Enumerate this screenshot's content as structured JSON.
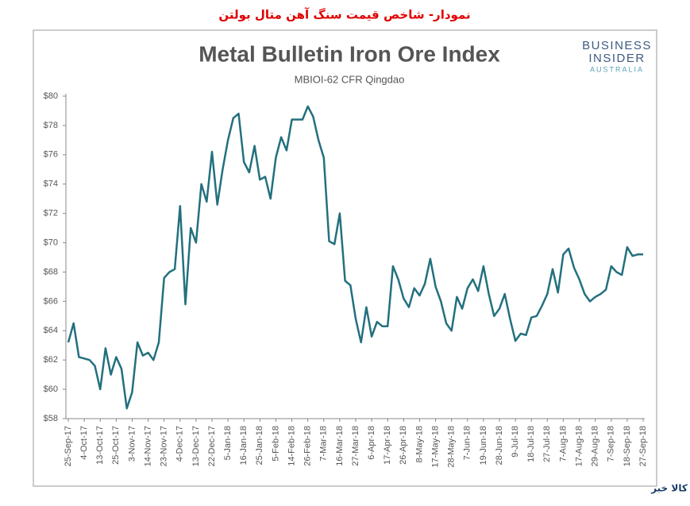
{
  "header": "نمودار- شاخص قیمت سنگ آهن متال بولتن",
  "chart_data": {
    "type": "line",
    "title": "Metal Bulletin Iron Ore Index",
    "subtitle": "MBIOI-62 CFR Qingdao",
    "categories": [
      "25-Sep-17",
      null,
      null,
      "4-Oct-17",
      null,
      null,
      "13-Oct-17",
      null,
      null,
      "25-Oct-17",
      null,
      null,
      "3-Nov-17",
      null,
      null,
      "14-Nov-17",
      null,
      null,
      "23-Nov-17",
      null,
      null,
      "4-Dec-17",
      null,
      null,
      "13-Dec-17",
      null,
      null,
      "22-Dec-17",
      null,
      null,
      "5-Jan-18",
      null,
      null,
      "16-Jan-18",
      null,
      null,
      "25-Jan-18",
      null,
      null,
      "5-Feb-18",
      null,
      null,
      "14-Feb-18",
      null,
      null,
      "26-Feb-18",
      null,
      null,
      "7-Mar-18",
      null,
      null,
      "16-Mar-18",
      null,
      null,
      "27-Mar-18",
      null,
      null,
      "6-Apr-18",
      null,
      null,
      "17-Apr-18",
      null,
      null,
      "26-Apr-18",
      null,
      null,
      "8-May-18",
      null,
      null,
      "17-May-18",
      null,
      null,
      "28-May-18",
      null,
      null,
      "7-Jun-18",
      null,
      null,
      "19-Jun-18",
      null,
      null,
      "28-Jun-18",
      null,
      null,
      "9-Jul-18",
      null,
      null,
      "18-Jul-18",
      null,
      null,
      "27-Jul-18",
      null,
      null,
      "7-Aug-18",
      null,
      null,
      "17-Aug-18",
      null,
      null,
      "29-Aug-18",
      null,
      null,
      "7-Sep-18",
      null,
      null,
      "18-Sep-18",
      null,
      null,
      "27-Sep-18"
    ],
    "series": [
      {
        "color": "#23707e",
        "values": [
          63.2,
          64.5,
          62.2,
          62.1,
          62.0,
          61.6,
          60.0,
          62.8,
          61.0,
          62.2,
          61.4,
          58.7,
          59.8,
          63.2,
          62.3,
          62.5,
          62.0,
          63.2,
          67.6,
          68.0,
          68.2,
          72.5,
          65.8,
          71.0,
          70.0,
          74.0,
          72.8,
          76.2,
          72.6,
          75.0,
          77.0,
          78.5,
          78.8,
          75.5,
          74.8,
          76.6,
          74.3,
          74.5,
          73.0,
          75.8,
          77.2,
          76.3,
          78.4,
          78.4,
          78.4,
          79.3,
          78.6,
          77.0,
          75.8,
          70.1,
          69.9,
          72.0,
          67.4,
          67.1,
          64.8,
          63.2,
          65.6,
          63.6,
          64.6,
          64.3,
          64.3,
          68.4,
          67.5,
          66.2,
          65.6,
          66.9,
          66.4,
          67.2,
          68.9,
          67.0,
          66.0,
          64.5,
          64.0,
          66.3,
          65.5,
          66.9,
          67.5,
          66.7,
          68.4,
          66.5,
          65.0,
          65.5,
          66.5,
          64.8,
          63.3,
          63.8,
          63.7,
          64.9,
          65.0,
          65.7,
          66.5,
          68.2,
          66.6,
          69.2,
          69.6,
          68.3,
          67.5,
          66.5,
          66.0,
          66.3,
          66.5,
          66.8,
          68.4,
          68.0,
          67.8,
          69.7,
          69.1,
          69.2,
          69.2
        ]
      }
    ],
    "ylim": [
      58,
      80
    ],
    "yticks": [
      {
        "value": 58,
        "label": "$58"
      },
      {
        "value": 60,
        "label": "$60"
      },
      {
        "value": 62,
        "label": "$62"
      },
      {
        "value": 64,
        "label": "$64"
      },
      {
        "value": 66,
        "label": "$66"
      },
      {
        "value": 68,
        "label": "$68"
      },
      {
        "value": 70,
        "label": "$70"
      },
      {
        "value": 72,
        "label": "$72"
      },
      {
        "value": 74,
        "label": "$74"
      },
      {
        "value": 76,
        "label": "$76"
      },
      {
        "value": 78,
        "label": "$78"
      },
      {
        "value": 80,
        "label": "$80"
      }
    ],
    "grid": false
  },
  "logo": [
    "BUSINESS",
    "INSIDER",
    "AUSTRALIA"
  ],
  "watermark": "کالا خبر"
}
